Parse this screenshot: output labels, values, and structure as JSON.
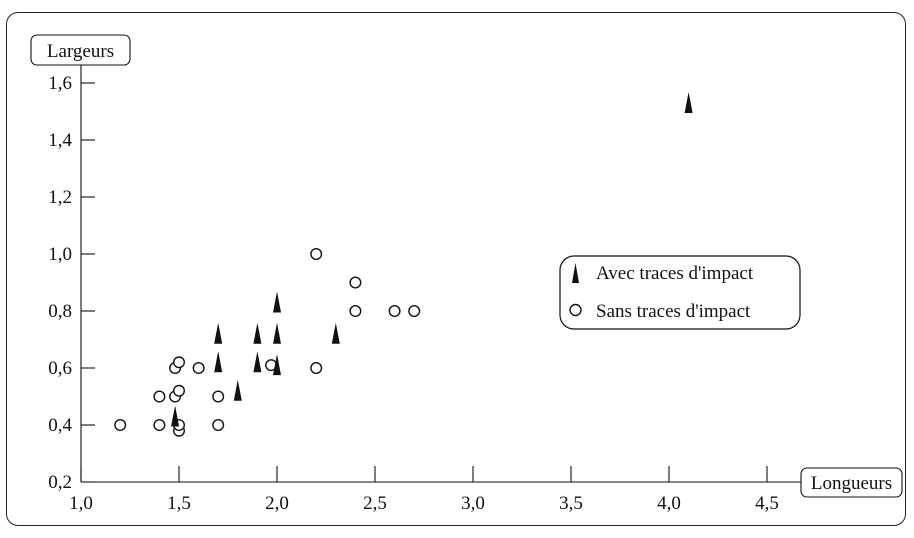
{
  "chart_data": {
    "type": "scatter",
    "xlabel": "Longueurs",
    "ylabel": "Largeurs",
    "xlim": [
      1.0,
      4.75
    ],
    "ylim": [
      0.2,
      1.68
    ],
    "x_ticks": [
      1.0,
      1.5,
      2.0,
      2.5,
      3.0,
      3.5,
      4.0,
      4.5
    ],
    "x_tick_labels": [
      "1,0",
      "1,5",
      "2,0",
      "2,5",
      "3,0",
      "3,5",
      "4,0",
      "4,5"
    ],
    "y_ticks": [
      0.2,
      0.4,
      0.6,
      0.8,
      1.0,
      1.2,
      1.4,
      1.6
    ],
    "y_tick_labels": [
      "0,2",
      "0,4",
      "0,6",
      "0,8",
      "1,0",
      "1,2",
      "1,4",
      "1,6"
    ],
    "grid": false,
    "legend_position": "center-right",
    "series": [
      {
        "name": "Avec traces d'impact",
        "marker": "filled-triangle",
        "color": "#111111",
        "points": [
          [
            1.48,
            0.43
          ],
          [
            1.7,
            0.62
          ],
          [
            1.7,
            0.72
          ],
          [
            1.8,
            0.52
          ],
          [
            1.9,
            0.62
          ],
          [
            1.9,
            0.72
          ],
          [
            2.0,
            0.61
          ],
          [
            2.0,
            0.72
          ],
          [
            2.0,
            0.83
          ],
          [
            2.3,
            0.72
          ],
          [
            4.1,
            1.53
          ]
        ]
      },
      {
        "name": "Sans traces d'impact",
        "marker": "open-circle",
        "color": "#111111",
        "points": [
          [
            1.2,
            0.4
          ],
          [
            1.4,
            0.4
          ],
          [
            1.4,
            0.5
          ],
          [
            1.48,
            0.5
          ],
          [
            1.48,
            0.6
          ],
          [
            1.5,
            0.62
          ],
          [
            1.5,
            0.52
          ],
          [
            1.5,
            0.38
          ],
          [
            1.5,
            0.4
          ],
          [
            1.6,
            0.6
          ],
          [
            1.7,
            0.5
          ],
          [
            1.7,
            0.4
          ],
          [
            1.97,
            0.61
          ],
          [
            2.2,
            1.0
          ],
          [
            2.2,
            0.6
          ],
          [
            2.4,
            0.9
          ],
          [
            2.4,
            0.8
          ],
          [
            2.6,
            0.8
          ],
          [
            2.7,
            0.8
          ]
        ]
      }
    ]
  }
}
